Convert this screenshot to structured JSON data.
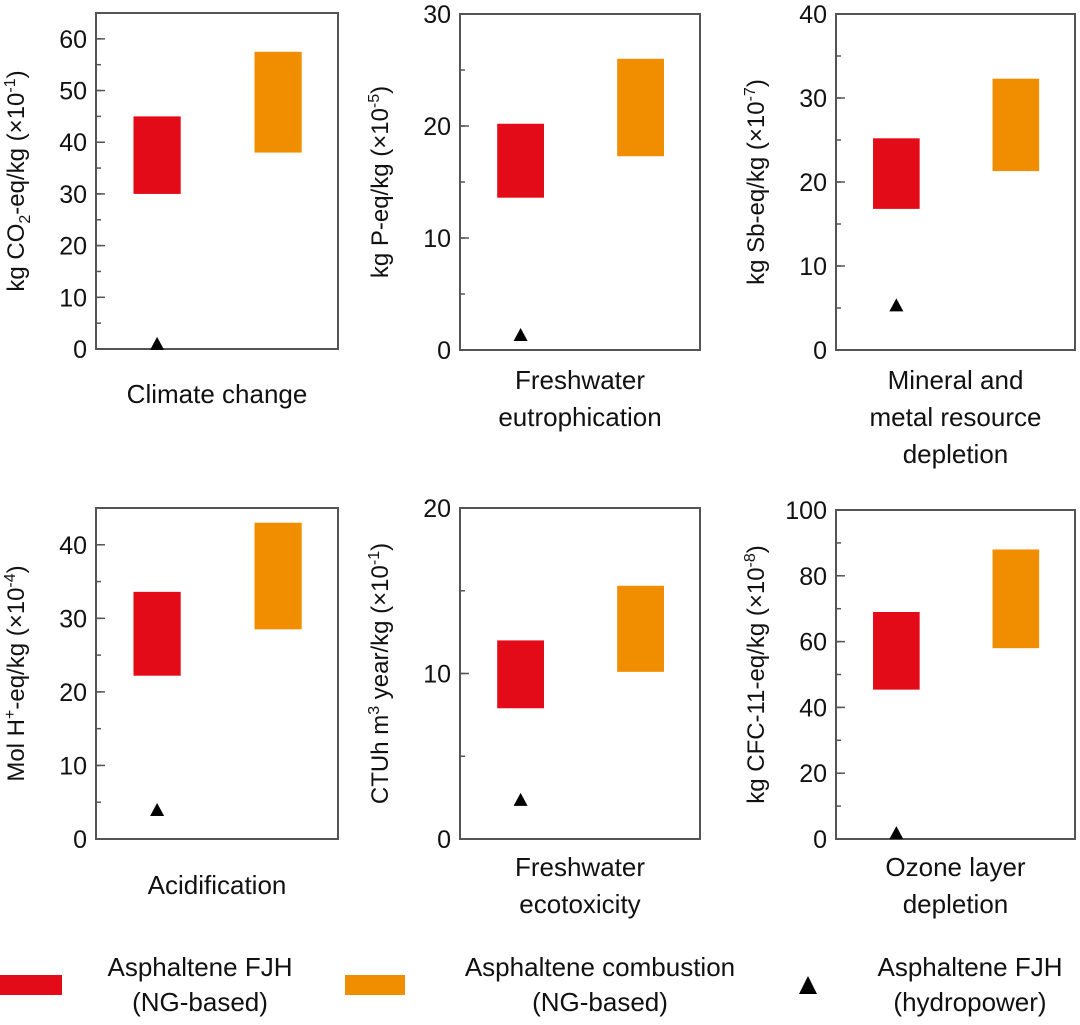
{
  "chart_data": [
    {
      "type": "range-bar",
      "title": "Climate change",
      "xlabel": [
        "Climate change"
      ],
      "ylabel": [
        {
          "t": "kg CO"
        },
        {
          "t": "2",
          "s": "sub"
        },
        {
          "t": "-eq/kg (×10"
        },
        {
          "t": "-1",
          "s": "sup"
        },
        {
          "t": ")"
        }
      ],
      "ylim": [
        0,
        65
      ],
      "yticks": [
        0,
        10,
        20,
        30,
        40,
        50,
        60
      ],
      "minor_step": 5,
      "ng_fjh": [
        30,
        45
      ],
      "ng_combustion": [
        38,
        57.5
      ],
      "hydro_fjh": 0.8
    },
    {
      "type": "range-bar",
      "title": "Freshwater eutrophication",
      "xlabel": [
        "Freshwater",
        "eutrophication"
      ],
      "ylabel": [
        {
          "t": "kg P-eq/kg (×10"
        },
        {
          "t": "-5",
          "s": "sup"
        },
        {
          "t": ")"
        }
      ],
      "ylim": [
        0,
        30
      ],
      "yticks": [
        0,
        10,
        20,
        30
      ],
      "minor_step": 5,
      "ng_fjh": [
        13.6,
        20.2
      ],
      "ng_combustion": [
        17.3,
        26
      ],
      "hydro_fjh": 1.25
    },
    {
      "type": "range-bar",
      "title": "Mineral and metal resource depletion",
      "xlabel": [
        "Mineral and",
        "metal resource",
        "depletion"
      ],
      "ylabel": [
        {
          "t": "kg Sb-eq/kg (×10"
        },
        {
          "t": "-7",
          "s": "sup"
        },
        {
          "t": ")"
        }
      ],
      "ylim": [
        0,
        40
      ],
      "yticks": [
        0,
        10,
        20,
        30,
        40
      ],
      "minor_step": 5,
      "ng_fjh": [
        16.8,
        25.2
      ],
      "ng_combustion": [
        21.3,
        32.3
      ],
      "hydro_fjh": 5.2
    },
    {
      "type": "range-bar",
      "title": "Acidification",
      "xlabel": [
        "Acidification"
      ],
      "ylabel": [
        {
          "t": "Mol H"
        },
        {
          "t": "+",
          "s": "sup"
        },
        {
          "t": "-eq/kg (×10"
        },
        {
          "t": "-4",
          "s": "sup"
        },
        {
          "t": ")"
        }
      ],
      "ylim": [
        0,
        45
      ],
      "yticks": [
        0,
        10,
        20,
        30,
        40
      ],
      "minor_step": 5,
      "ng_fjh": [
        22.2,
        33.6
      ],
      "ng_combustion": [
        28.5,
        43
      ],
      "hydro_fjh": 3.8
    },
    {
      "type": "range-bar",
      "title": "Freshwater ecotoxicity",
      "xlabel": [
        "Freshwater",
        "ecotoxicity"
      ],
      "ylabel": [
        {
          "t": "CTUh m"
        },
        {
          "t": "3",
          "s": "sup"
        },
        {
          "t": " year/kg (×10"
        },
        {
          "t": "-1",
          "s": "sup"
        },
        {
          "t": ")"
        }
      ],
      "ylim": [
        0,
        20
      ],
      "yticks": [
        0,
        10,
        20
      ],
      "minor_step": 5,
      "ng_fjh": [
        7.9,
        12
      ],
      "ng_combustion": [
        10.1,
        15.3
      ],
      "hydro_fjh": 2.3
    },
    {
      "type": "range-bar",
      "title": "Ozone layer depletion",
      "xlabel": [
        "Ozone layer",
        "depletion"
      ],
      "ylabel": [
        {
          "t": "kg CFC-11-eq/kg (×10"
        },
        {
          "t": "-8",
          "s": "sup"
        },
        {
          "t": ")"
        }
      ],
      "ylim": [
        0,
        100
      ],
      "yticks": [
        0,
        20,
        40,
        60,
        80,
        100
      ],
      "minor_step": 10,
      "ng_fjh": [
        45.4,
        69
      ],
      "ng_combustion": [
        58,
        88
      ],
      "hydro_fjh": 1.5
    }
  ],
  "legend": [
    {
      "key": "ng_fjh",
      "label": [
        "Asphaltene FJH",
        "(NG-based)"
      ],
      "color": "#e30b17",
      "marker": "rect"
    },
    {
      "key": "ng_combustion",
      "label": [
        "Asphaltene combustion",
        "(NG-based)"
      ],
      "color": "#f18e00",
      "marker": "rect"
    },
    {
      "key": "hydro_fjh",
      "label": [
        "Asphaltene FJH",
        "(hydropower)"
      ],
      "color": "#000000",
      "marker": "triangle"
    }
  ],
  "colors": {
    "ng_fjh": "#e30b17",
    "ng_combustion": "#f18e00",
    "hydro_fjh": "#000000",
    "axis": "#555555"
  }
}
